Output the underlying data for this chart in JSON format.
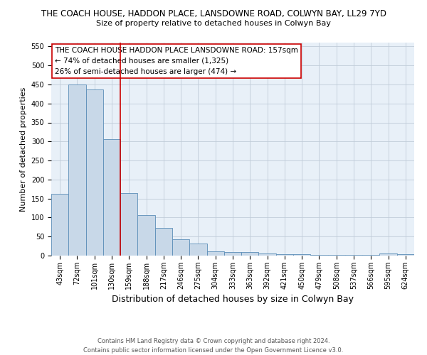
{
  "title": "THE COACH HOUSE, HADDON PLACE, LANSDOWNE ROAD, COLWYN BAY, LL29 7YD",
  "subtitle": "Size of property relative to detached houses in Colwyn Bay",
  "xlabel": "Distribution of detached houses by size in Colwyn Bay",
  "ylabel": "Number of detached properties",
  "categories": [
    "43sqm",
    "72sqm",
    "101sqm",
    "130sqm",
    "159sqm",
    "188sqm",
    "217sqm",
    "246sqm",
    "275sqm",
    "304sqm",
    "333sqm",
    "363sqm",
    "392sqm",
    "421sqm",
    "450sqm",
    "479sqm",
    "508sqm",
    "537sqm",
    "566sqm",
    "595sqm",
    "624sqm"
  ],
  "values": [
    163,
    450,
    436,
    307,
    165,
    107,
    73,
    43,
    31,
    11,
    9,
    9,
    5,
    4,
    3,
    2,
    2,
    1,
    1,
    5,
    4
  ],
  "bar_color": "#c8d8e8",
  "bar_edge_color": "#5b8db8",
  "vline_x_index": 4,
  "vline_color": "#cc0000",
  "annotation_line1": "THE COACH HOUSE HADDON PLACE LANSDOWNE ROAD: 157sqm",
  "annotation_line2": "← 74% of detached houses are smaller (1,325)",
  "annotation_line3": "26% of semi-detached houses are larger (474) →",
  "annotation_box_color": "#cc0000",
  "annotation_fill_color": "#ffffff",
  "ylim": [
    0,
    560
  ],
  "yticks": [
    0,
    50,
    100,
    150,
    200,
    250,
    300,
    350,
    400,
    450,
    500,
    550
  ],
  "footnote": "Contains HM Land Registry data © Crown copyright and database right 2024.\nContains public sector information licensed under the Open Government Licence v3.0.",
  "bg_color": "#ffffff",
  "grid_color": "#c0ccd8",
  "title_fontsize": 8.5,
  "subtitle_fontsize": 8,
  "xlabel_fontsize": 9,
  "ylabel_fontsize": 8,
  "tick_fontsize": 7,
  "annotation_fontsize": 7.5,
  "footnote_fontsize": 6
}
